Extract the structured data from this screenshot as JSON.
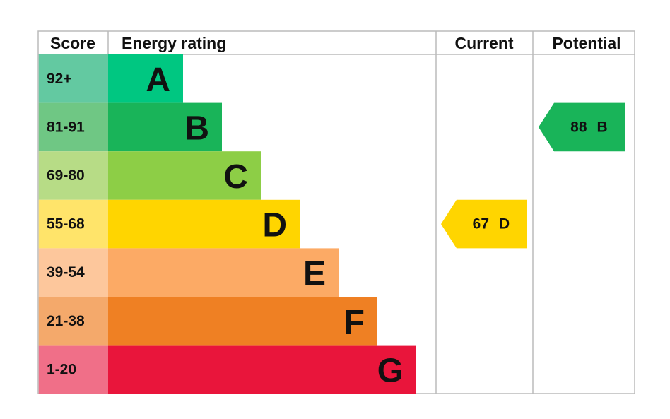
{
  "header": {
    "score": "Score",
    "rating": "Energy rating",
    "current": "Current",
    "potential": "Potential"
  },
  "rows": [
    {
      "score": "92+",
      "letter": "A",
      "color": "#00c781",
      "score_color": "#63c9a1"
    },
    {
      "score": "81-91",
      "letter": "B",
      "color": "#19b459",
      "score_color": "#6fc784"
    },
    {
      "score": "69-80",
      "letter": "C",
      "color": "#8dce46",
      "score_color": "#b7dc86"
    },
    {
      "score": "55-68",
      "letter": "D",
      "color": "#ffd500",
      "score_color": "#ffe46a"
    },
    {
      "score": "39-54",
      "letter": "E",
      "color": "#fcaa65",
      "score_color": "#fdc79c"
    },
    {
      "score": "21-38",
      "letter": "F",
      "color": "#ef8023",
      "score_color": "#f4a96b"
    },
    {
      "score": "1-20",
      "letter": "G",
      "color": "#e9153b",
      "score_color": "#f06f88"
    }
  ],
  "current": {
    "score": 67,
    "rating": "D"
  },
  "potential": {
    "score": 88,
    "rating": "B"
  }
}
